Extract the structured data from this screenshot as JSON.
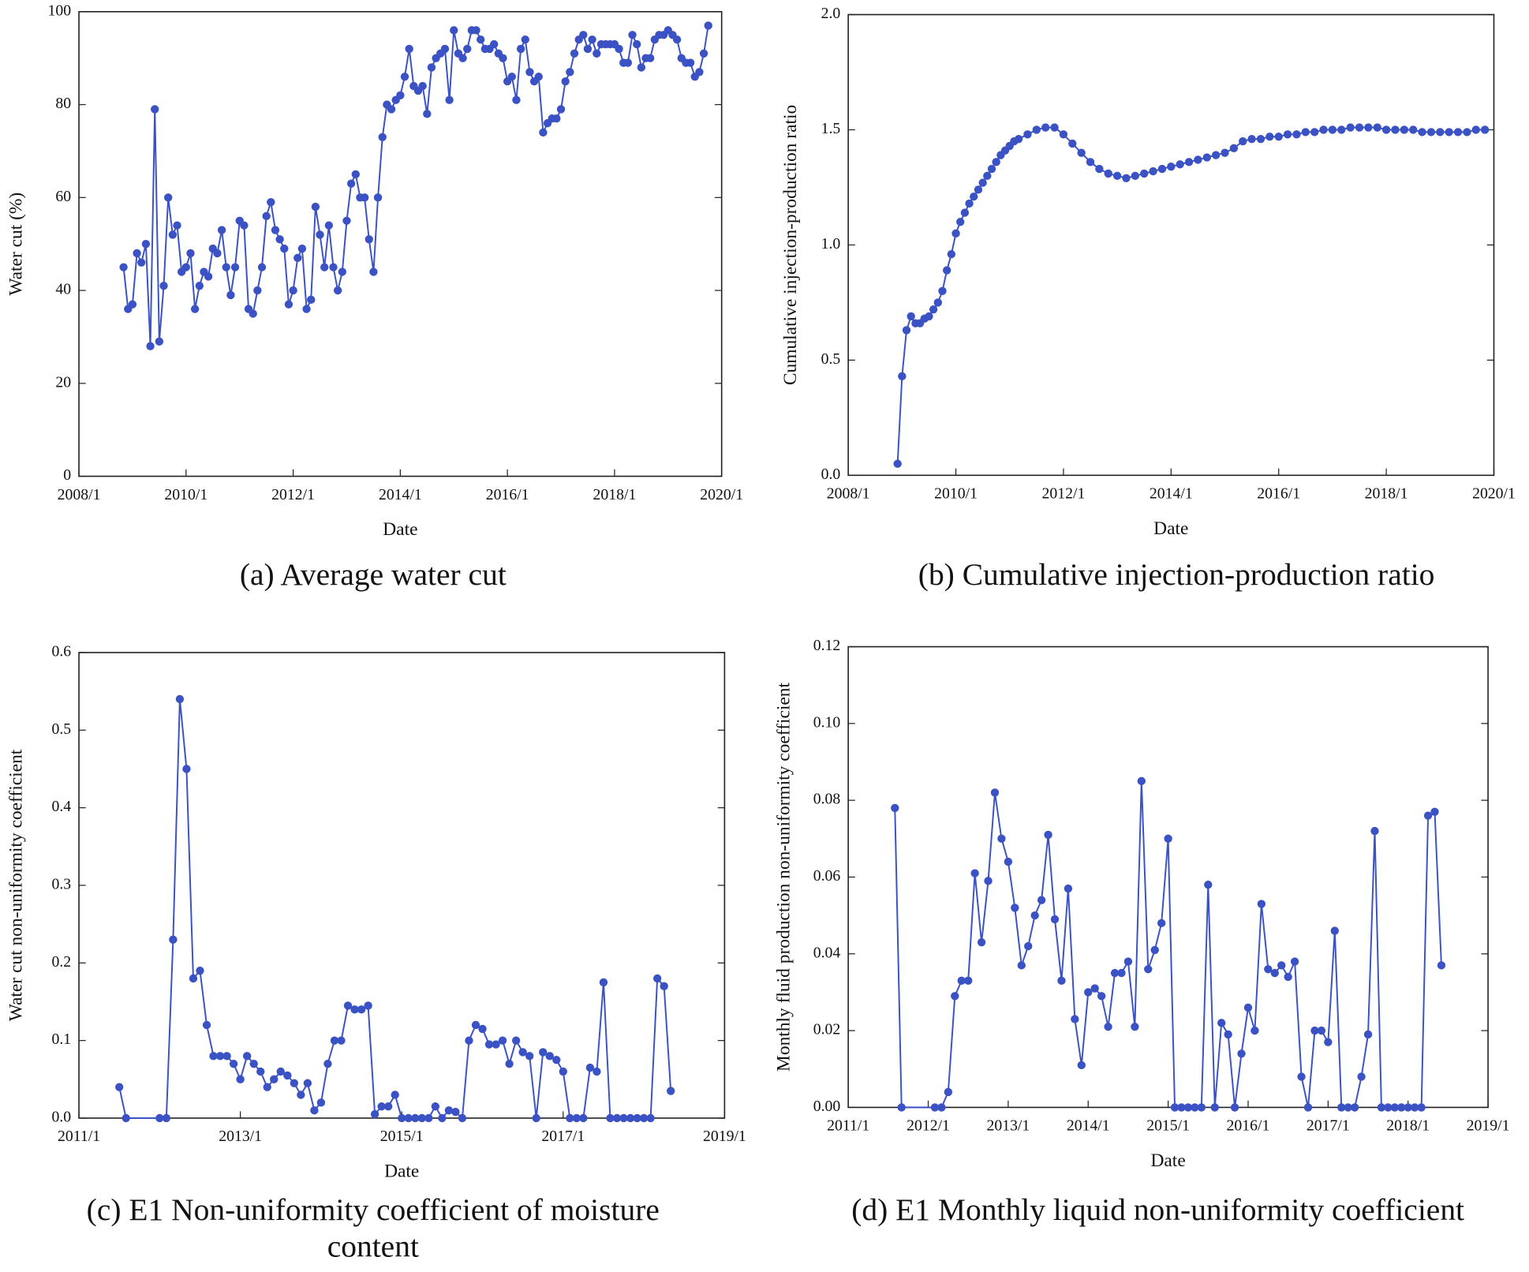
{
  "chart_data": [
    {
      "type": "line",
      "caption": [
        "(a) Average water cut"
      ],
      "xlabel": "Date",
      "ylabel": "Water cut (%)",
      "color": "#3a52c4",
      "markers": true,
      "xlim": [
        "2008/1",
        "2020/1"
      ],
      "ylim": [
        0,
        100
      ],
      "xticks": [
        "2008/1",
        "2010/1",
        "2012/1",
        "2014/1",
        "2016/1",
        "2018/1",
        "2020/1"
      ],
      "yticks": [
        0,
        20,
        40,
        60,
        80,
        100
      ],
      "x": [
        "2008/11",
        "2008/12",
        "2009/1",
        "2009/2",
        "2009/3",
        "2009/4",
        "2009/5",
        "2009/6",
        "2009/7",
        "2009/8",
        "2009/9",
        "2009/10",
        "2009/11",
        "2009/12",
        "2010/1",
        "2010/2",
        "2010/3",
        "2010/4",
        "2010/5",
        "2010/6",
        "2010/7",
        "2010/8",
        "2010/9",
        "2010/10",
        "2010/11",
        "2010/12",
        "2011/1",
        "2011/2",
        "2011/3",
        "2011/4",
        "2011/5",
        "2011/6",
        "2011/7",
        "2011/8",
        "2011/9",
        "2011/10",
        "2011/11",
        "2011/12",
        "2012/1",
        "2012/2",
        "2012/3",
        "2012/4",
        "2012/5",
        "2012/6",
        "2012/7",
        "2012/8",
        "2012/9",
        "2012/10",
        "2012/11",
        "2012/12",
        "2013/1",
        "2013/2",
        "2013/3",
        "2013/4",
        "2013/5",
        "2013/6",
        "2013/7",
        "2013/8",
        "2013/9",
        "2013/10",
        "2013/11",
        "2013/12",
        "2014/1",
        "2014/2",
        "2014/3",
        "2014/4",
        "2014/5",
        "2014/6",
        "2014/7",
        "2014/8",
        "2014/9",
        "2014/10",
        "2014/11",
        "2014/12",
        "2015/1",
        "2015/2",
        "2015/3",
        "2015/4",
        "2015/5",
        "2015/6",
        "2015/7",
        "2015/8",
        "2015/9",
        "2015/10",
        "2015/11",
        "2015/12",
        "2016/1",
        "2016/2",
        "2016/3",
        "2016/4",
        "2016/5",
        "2016/6",
        "2016/7",
        "2016/8",
        "2016/9",
        "2016/10",
        "2016/11",
        "2016/12",
        "2017/1",
        "2017/2",
        "2017/3",
        "2017/4",
        "2017/5",
        "2017/6",
        "2017/7",
        "2017/8",
        "2017/9",
        "2017/10",
        "2017/11",
        "2017/12",
        "2018/1",
        "2018/2",
        "2018/3",
        "2018/4",
        "2018/5",
        "2018/6",
        "2018/7",
        "2018/8",
        "2018/9",
        "2018/10",
        "2018/11",
        "2018/12",
        "2019/1",
        "2019/2",
        "2019/3",
        "2019/4",
        "2019/5",
        "2019/6",
        "2019/7",
        "2019/8",
        "2019/9",
        "2019/10"
      ],
      "values": [
        45,
        36,
        37,
        48,
        46,
        50,
        28,
        79,
        29,
        41,
        60,
        52,
        54,
        44,
        45,
        48,
        36,
        41,
        44,
        43,
        49,
        48,
        53,
        45,
        39,
        45,
        55,
        54,
        36,
        35,
        40,
        45,
        56,
        59,
        53,
        51,
        49,
        37,
        40,
        47,
        49,
        36,
        38,
        58,
        52,
        45,
        54,
        45,
        40,
        44,
        55,
        63,
        65,
        60,
        60,
        51,
        44,
        60,
        73,
        80,
        79,
        81,
        82,
        86,
        92,
        84,
        83,
        84,
        78,
        88,
        90,
        91,
        92,
        81,
        96,
        91,
        90,
        92,
        96,
        96,
        94,
        92,
        92,
        93,
        91,
        90,
        85,
        86,
        81,
        92,
        94,
        87,
        85,
        86,
        74,
        76,
        77,
        77,
        79,
        85,
        87,
        91,
        94,
        95,
        92,
        94,
        91,
        93,
        93,
        93,
        93,
        92,
        89,
        89,
        95,
        93,
        88,
        90,
        90,
        94,
        95,
        95,
        96,
        95,
        94,
        90,
        89,
        89,
        86,
        87,
        91,
        97
      ]
    },
    {
      "type": "line",
      "caption": [
        "(b) Cumulative injection-production ratio"
      ],
      "xlabel": "Date",
      "ylabel": "Cumulative injection-production ratio",
      "color": "#3a52c4",
      "markers": true,
      "xlim": [
        "2008/1",
        "2020/1"
      ],
      "ylim": [
        0,
        2
      ],
      "xticks": [
        "2008/1",
        "2010/1",
        "2012/1",
        "2014/1",
        "2016/1",
        "2018/1",
        "2020/1"
      ],
      "yticks": [
        {
          "value": 0,
          "label": "0.0"
        },
        0.5,
        {
          "value": 1,
          "label": "1.0"
        },
        1.5,
        {
          "value": 2,
          "label": "2.0"
        }
      ],
      "x": [
        "2008/12",
        "2009/1",
        "2009/2",
        "2009/3",
        "2009/4",
        "2009/5",
        "2009/6",
        "2009/7",
        "2009/8",
        "2009/9",
        "2009/10",
        "2009/11",
        "2009/12",
        "2010/1",
        "2010/2",
        "2010/3",
        "2010/4",
        "2010/5",
        "2010/6",
        "2010/7",
        "2010/8",
        "2010/9",
        "2010/10",
        "2010/11",
        "2010/12",
        "2011/1",
        "2011/2",
        "2011/3",
        "2011/5",
        "2011/7",
        "2011/9",
        "2011/11",
        "2012/1",
        "2012/3",
        "2012/5",
        "2012/7",
        "2012/9",
        "2012/11",
        "2013/1",
        "2013/3",
        "2013/5",
        "2013/7",
        "2013/9",
        "2013/11",
        "2014/1",
        "2014/3",
        "2014/5",
        "2014/7",
        "2014/9",
        "2014/11",
        "2015/1",
        "2015/3",
        "2015/5",
        "2015/7",
        "2015/9",
        "2015/11",
        "2016/1",
        "2016/3",
        "2016/5",
        "2016/7",
        "2016/9",
        "2016/11",
        "2017/1",
        "2017/3",
        "2017/5",
        "2017/7",
        "2017/9",
        "2017/11",
        "2018/1",
        "2018/3",
        "2018/5",
        "2018/7",
        "2018/9",
        "2018/11",
        "2019/1",
        "2019/3",
        "2019/5",
        "2019/7",
        "2019/9",
        "2019/11"
      ],
      "values": [
        0.05,
        0.43,
        0.63,
        0.69,
        0.66,
        0.66,
        0.68,
        0.69,
        0.72,
        0.75,
        0.8,
        0.89,
        0.96,
        1.05,
        1.1,
        1.14,
        1.18,
        1.21,
        1.24,
        1.27,
        1.3,
        1.33,
        1.36,
        1.39,
        1.41,
        1.43,
        1.45,
        1.46,
        1.48,
        1.5,
        1.51,
        1.51,
        1.48,
        1.44,
        1.4,
        1.36,
        1.33,
        1.31,
        1.3,
        1.29,
        1.3,
        1.31,
        1.32,
        1.33,
        1.34,
        1.35,
        1.36,
        1.37,
        1.38,
        1.39,
        1.4,
        1.42,
        1.45,
        1.46,
        1.46,
        1.47,
        1.47,
        1.48,
        1.48,
        1.49,
        1.49,
        1.5,
        1.5,
        1.5,
        1.51,
        1.51,
        1.51,
        1.51,
        1.5,
        1.5,
        1.5,
        1.5,
        1.49,
        1.49,
        1.49,
        1.49,
        1.49,
        1.49,
        1.5,
        1.5
      ]
    },
    {
      "type": "line",
      "caption": [
        "(c) E1 Non-uniformity coefficient of moisture",
        "content"
      ],
      "xlabel": "Date",
      "ylabel": "Water cut non-uniformity coefficient",
      "color": "#3a52c4",
      "markers": true,
      "xlim": [
        "2011/1",
        "2019/1"
      ],
      "ylim": [
        0,
        0.6
      ],
      "xticks": [
        "2011/1",
        "2013/1",
        "2015/1",
        "2017/1",
        "2019/1"
      ],
      "yticks": [
        {
          "value": 0,
          "label": "0.0"
        },
        0.1,
        0.2,
        0.3,
        0.4,
        0.5,
        0.6
      ],
      "x": [
        "2011/7",
        "2011/8",
        "2012/1",
        "2012/2",
        "2012/3",
        "2012/4",
        "2012/5",
        "2012/6",
        "2012/7",
        "2012/8",
        "2012/9",
        "2012/10",
        "2012/11",
        "2012/12",
        "2013/1",
        "2013/2",
        "2013/3",
        "2013/4",
        "2013/5",
        "2013/6",
        "2013/7",
        "2013/8",
        "2013/9",
        "2013/10",
        "2013/11",
        "2013/12",
        "2014/1",
        "2014/2",
        "2014/3",
        "2014/4",
        "2014/5",
        "2014/6",
        "2014/7",
        "2014/8",
        "2014/9",
        "2014/10",
        "2014/11",
        "2014/12",
        "2015/1",
        "2015/2",
        "2015/3",
        "2015/4",
        "2015/5",
        "2015/6",
        "2015/7",
        "2015/8",
        "2015/9",
        "2015/10",
        "2015/11",
        "2015/12",
        "2016/1",
        "2016/2",
        "2016/3",
        "2016/4",
        "2016/5",
        "2016/6",
        "2016/7",
        "2016/8",
        "2016/9",
        "2016/10",
        "2016/11",
        "2016/12",
        "2017/1",
        "2017/2",
        "2017/3",
        "2017/4",
        "2017/5",
        "2017/6",
        "2017/7",
        "2017/8",
        "2017/9",
        "2017/10",
        "2017/11",
        "2017/12",
        "2018/1",
        "2018/2",
        "2018/3",
        "2018/4",
        "2018/5"
      ],
      "values": [
        0.04,
        0,
        0,
        0,
        0.23,
        0.54,
        0.45,
        0.18,
        0.19,
        0.12,
        0.08,
        0.08,
        0.08,
        0.07,
        0.05,
        0.08,
        0.07,
        0.06,
        0.04,
        0.05,
        0.06,
        0.055,
        0.045,
        0.03,
        0.045,
        0.01,
        0.02,
        0.07,
        0.1,
        0.1,
        0.145,
        0.14,
        0.14,
        0.145,
        0.005,
        0.015,
        0.015,
        0.03,
        0,
        0,
        0,
        0,
        0,
        0.015,
        0,
        0.01,
        0.008,
        0,
        0.1,
        0.12,
        0.115,
        0.095,
        0.095,
        0.1,
        0.07,
        0.1,
        0.085,
        0.08,
        0,
        0.085,
        0.08,
        0.075,
        0.06,
        0,
        0,
        0,
        0.065,
        0.06,
        0.175,
        0,
        0,
        0,
        0,
        0,
        0,
        0,
        0.18,
        0.17,
        0.035
      ]
    },
    {
      "type": "line",
      "caption": [
        "(d) E1 Monthly liquid non-uniformity coefficient"
      ],
      "xlabel": "Date",
      "ylabel": "Monthly fluid production non-uniformity coefficient",
      "color": "#3a52c4",
      "markers": true,
      "xlim": [
        "2011/1",
        "2019/1"
      ],
      "ylim": [
        0,
        0.12
      ],
      "xticks": [
        "2011/1",
        "2012/1",
        "2013/1",
        "2014/1",
        "2015/1",
        "2016/1",
        "2017/1",
        "2018/1",
        "2019/1"
      ],
      "yticks": [
        {
          "value": 0,
          "label": "0.00"
        },
        0.02,
        0.04,
        0.06,
        0.08,
        {
          "value": 0.1,
          "label": "0.10"
        },
        0.12
      ],
      "x": [
        "2011/8",
        "2011/9",
        "2012/2",
        "2012/3",
        "2012/4",
        "2012/5",
        "2012/6",
        "2012/7",
        "2012/8",
        "2012/9",
        "2012/10",
        "2012/11",
        "2012/12",
        "2013/1",
        "2013/2",
        "2013/3",
        "2013/4",
        "2013/5",
        "2013/6",
        "2013/7",
        "2013/8",
        "2013/9",
        "2013/10",
        "2013/11",
        "2013/12",
        "2014/1",
        "2014/2",
        "2014/3",
        "2014/4",
        "2014/5",
        "2014/6",
        "2014/7",
        "2014/8",
        "2014/9",
        "2014/10",
        "2014/11",
        "2014/12",
        "2015/1",
        "2015/2",
        "2015/3",
        "2015/4",
        "2015/5",
        "2015/6",
        "2015/7",
        "2015/8",
        "2015/9",
        "2015/10",
        "2015/11",
        "2015/12",
        "2016/1",
        "2016/2",
        "2016/3",
        "2016/4",
        "2016/5",
        "2016/6",
        "2016/7",
        "2016/8",
        "2016/9",
        "2016/10",
        "2016/11",
        "2016/12",
        "2017/1",
        "2017/2",
        "2017/3",
        "2017/4",
        "2017/5",
        "2017/6",
        "2017/7",
        "2017/8",
        "2017/9",
        "2017/10",
        "2017/11",
        "2017/12",
        "2018/1",
        "2018/2",
        "2018/3",
        "2018/4",
        "2018/5",
        "2018/6"
      ],
      "values": [
        0.078,
        0,
        0,
        0,
        0.004,
        0.029,
        0.033,
        0.033,
        0.061,
        0.043,
        0.059,
        0.082,
        0.07,
        0.064,
        0.052,
        0.037,
        0.042,
        0.05,
        0.054,
        0.071,
        0.049,
        0.033,
        0.057,
        0.023,
        0.011,
        0.03,
        0.031,
        0.029,
        0.021,
        0.035,
        0.035,
        0.038,
        0.021,
        0.085,
        0.036,
        0.041,
        0.048,
        0.07,
        0,
        0,
        0,
        0,
        0,
        0.058,
        0,
        0.022,
        0.019,
        0,
        0.014,
        0.026,
        0.02,
        0.053,
        0.036,
        0.035,
        0.037,
        0.034,
        0.038,
        0.008,
        0,
        0.02,
        0.02,
        0.017,
        0.046,
        0,
        0,
        0,
        0.008,
        0.019,
        0.072,
        0,
        0,
        0,
        0,
        0,
        0,
        0,
        0.076,
        0.077,
        0.037
      ]
    }
  ]
}
